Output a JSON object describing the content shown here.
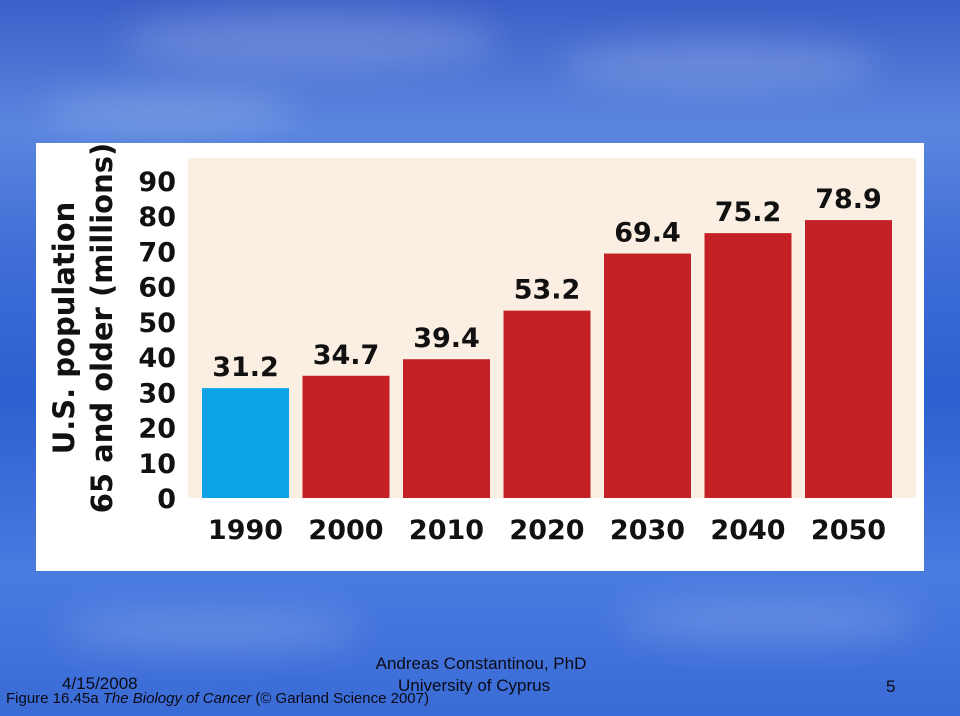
{
  "chart_data": {
    "type": "bar",
    "ylabel_line1": "U.S. population",
    "ylabel_line2": "65 and older (millions)",
    "categories": [
      "1990",
      "2000",
      "2010",
      "2020",
      "2030",
      "2040",
      "2050"
    ],
    "values": [
      31.2,
      34.7,
      39.4,
      53.2,
      69.4,
      75.2,
      78.9
    ],
    "value_labels": [
      "31.2",
      "34.7",
      "39.4",
      "53.2",
      "69.4",
      "75.2",
      "78.9"
    ],
    "yticks": [
      "0",
      "10",
      "20",
      "30",
      "40",
      "50",
      "60",
      "70",
      "80",
      "90"
    ],
    "ylim": [
      0,
      90
    ],
    "grid": false,
    "colors": {
      "highlight": "#0da2e6",
      "bar": "#c42126",
      "plot_bg": "#fbeee3"
    },
    "highlight_index": 0
  },
  "footer": {
    "date": "4/15/2008",
    "author": "Andreas Constantinou, PhD",
    "university": "University of Cyprus",
    "page": "5"
  },
  "caption": {
    "prefix": "Figure 16.45a",
    "book": "The Biology of Cancer",
    "suffix": "(© Garland Science 2007)"
  }
}
